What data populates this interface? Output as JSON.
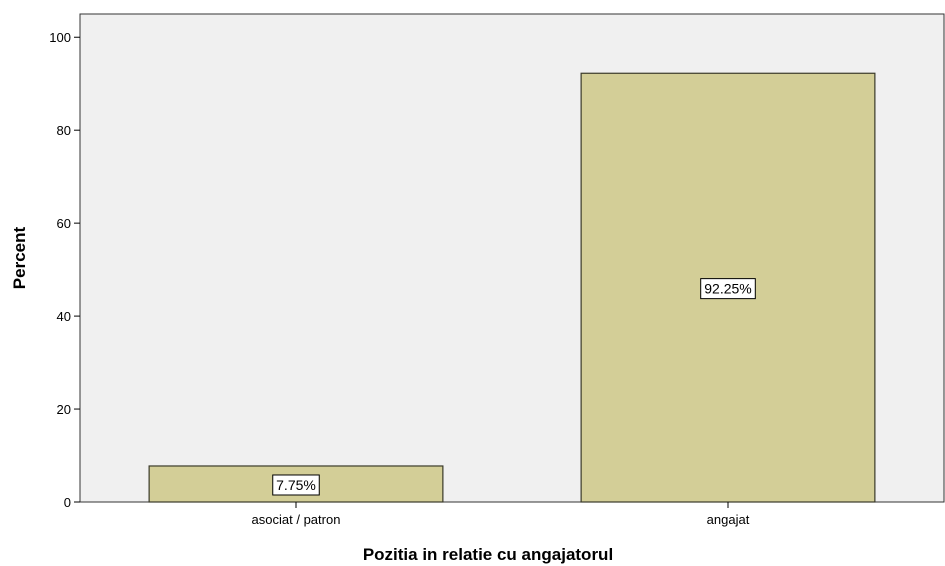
{
  "chart_data": {
    "type": "bar",
    "title": "",
    "xlabel": "Pozitia in relatie cu angajatorul",
    "ylabel": "Percent",
    "categories": [
      "asociat / patron",
      "angajat"
    ],
    "values": [
      7.75,
      92.25
    ],
    "data_labels": [
      "7.75%",
      "92.25%"
    ],
    "yticks": [
      0,
      20,
      40,
      60,
      80,
      100
    ],
    "ylim": [
      0,
      105
    ],
    "grid": false,
    "legend": "none"
  },
  "colors": {
    "plot_background": "#f0f0f0",
    "bar_fill": "#d3ce97",
    "bar_stroke": "#3a3a2a",
    "frame": "#333333",
    "label_box": "#ffffff"
  }
}
